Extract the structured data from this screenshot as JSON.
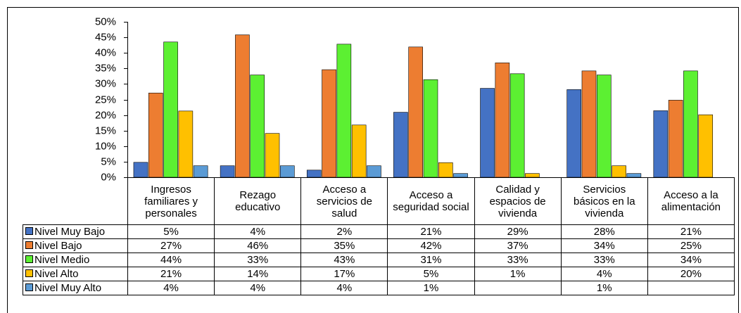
{
  "chart_data": {
    "type": "bar",
    "categories": [
      "Ingresos familiares y personales",
      "Rezago educativo",
      "Acceso a servicios de salud",
      "Acceso a seguridad social",
      "Calidad y espacios de vivienda",
      "Servicios básicos en la vivienda",
      "Acceso a la alimentación"
    ],
    "series": [
      {
        "name": "Nivel Muy Bajo",
        "color": "#4472c4",
        "values": [
          4.8,
          3.7,
          2.3,
          20.9,
          28.6,
          28.2,
          21.4
        ],
        "value_labels": [
          "5%",
          "4%",
          "2%",
          "21%",
          "29%",
          "28%",
          "21%"
        ]
      },
      {
        "name": "Nivel Bajo",
        "color": "#ed7d31",
        "values": [
          27.1,
          45.8,
          34.6,
          41.9,
          36.8,
          34.2,
          24.8
        ],
        "value_labels": [
          "27%",
          "46%",
          "35%",
          "42%",
          "37%",
          "34%",
          "25%"
        ]
      },
      {
        "name": "Nivel Medio",
        "color": "#5cf032",
        "values": [
          43.5,
          32.9,
          42.8,
          31.4,
          33.3,
          32.9,
          34.2
        ],
        "value_labels": [
          "44%",
          "33%",
          "43%",
          "31%",
          "33%",
          "33%",
          "34%"
        ]
      },
      {
        "name": "Nivel Alto",
        "color": "#ffc000",
        "values": [
          21.3,
          14.1,
          16.8,
          4.7,
          1.2,
          3.7,
          20.1
        ],
        "value_labels": [
          "21%",
          "14%",
          "17%",
          "5%",
          "1%",
          "4%",
          "20%"
        ]
      },
      {
        "name": "Nivel Muy Alto",
        "color": "#5b9bd5",
        "values": [
          3.7,
          3.7,
          3.7,
          1.2,
          null,
          1.2,
          null
        ],
        "value_labels": [
          "4%",
          "4%",
          "4%",
          "1%",
          null,
          "1%",
          null
        ]
      }
    ],
    "ylim": [
      0,
      50
    ],
    "yticks": [
      {
        "value": 0,
        "label": "0%"
      },
      {
        "value": 5,
        "label": "5%"
      },
      {
        "value": 10,
        "label": "10%"
      },
      {
        "value": 15,
        "label": "15%"
      },
      {
        "value": 20,
        "label": "20%"
      },
      {
        "value": 25,
        "label": "25%"
      },
      {
        "value": 30,
        "label": "30%"
      },
      {
        "value": 35,
        "label": "35%"
      },
      {
        "value": 40,
        "label": "40%"
      },
      {
        "value": 45,
        "label": "45%"
      },
      {
        "value": 50,
        "label": "50%"
      }
    ]
  }
}
